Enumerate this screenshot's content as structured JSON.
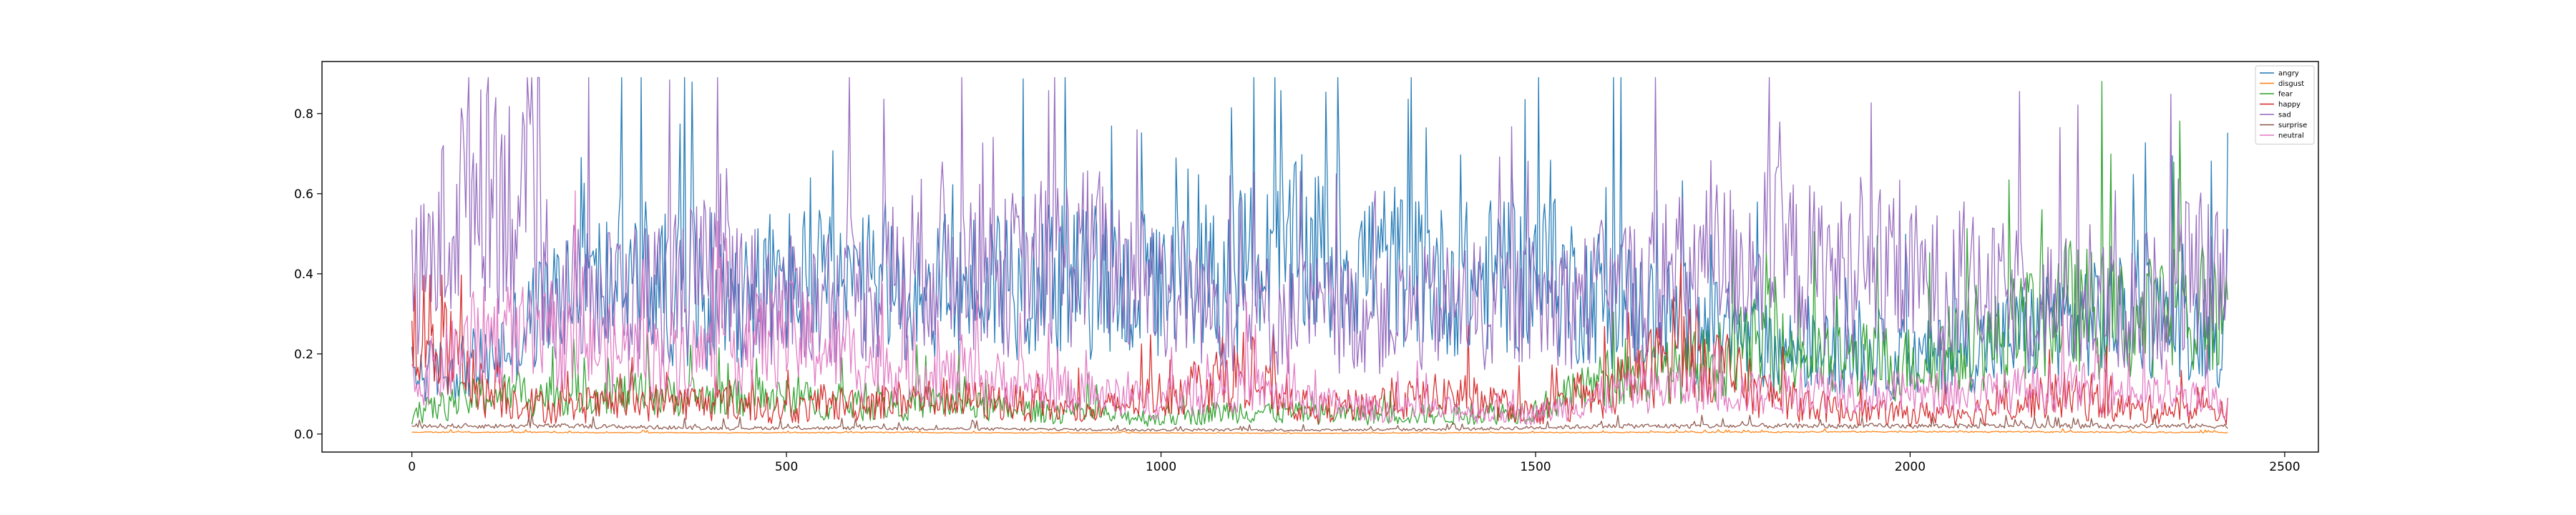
{
  "chart_data": {
    "type": "line",
    "title": "",
    "xlabel": "",
    "ylabel": "",
    "xlim": [
      -120,
      2545
    ],
    "ylim": [
      -0.045,
      0.93
    ],
    "x_ticks": [
      0,
      500,
      1000,
      1500,
      2000,
      2500
    ],
    "x_tick_labels": [
      "0",
      "500",
      "1000",
      "1500",
      "2000",
      "2500"
    ],
    "y_ticks": [
      0.0,
      0.2,
      0.4,
      0.6,
      0.8
    ],
    "y_tick_labels": [
      "0.0",
      "0.2",
      "0.4",
      "0.6",
      "0.8"
    ],
    "grid": false,
    "legend_position": "top-right",
    "n_points": 2425,
    "series_order": [
      "angry",
      "disgust",
      "fear",
      "happy",
      "sad",
      "surprise",
      "neutral"
    ],
    "series": [
      {
        "name": "angry",
        "color": "#1f77b4",
        "x": [
          0,
          100,
          200,
          300,
          400,
          500,
          600,
          700,
          800,
          900,
          1000,
          1100,
          1200,
          1300,
          1400,
          1500,
          1600,
          1700,
          1800,
          1900,
          2000,
          2100,
          2200,
          2300,
          2400
        ],
        "values": [
          0.15,
          0.18,
          0.35,
          0.4,
          0.33,
          0.38,
          0.36,
          0.35,
          0.4,
          0.38,
          0.35,
          0.4,
          0.45,
          0.42,
          0.38,
          0.4,
          0.33,
          0.28,
          0.22,
          0.2,
          0.18,
          0.22,
          0.28,
          0.3,
          0.25
        ]
      },
      {
        "name": "disgust",
        "color": "#ff7f0e",
        "x": [
          0,
          200,
          400,
          600,
          800,
          1000,
          1200,
          1400,
          1600,
          1800,
          2000,
          2200,
          2400
        ],
        "values": [
          0.005,
          0.004,
          0.003,
          0.004,
          0.003,
          0.003,
          0.002,
          0.003,
          0.004,
          0.005,
          0.006,
          0.005,
          0.004
        ]
      },
      {
        "name": "fear",
        "color": "#2ca02c",
        "x": [
          0,
          100,
          200,
          300,
          400,
          500,
          600,
          700,
          800,
          900,
          1000,
          1100,
          1200,
          1300,
          1400,
          1500,
          1600,
          1700,
          1800,
          1900,
          2000,
          2100,
          2200,
          2300,
          2400
        ],
        "values": [
          0.05,
          0.1,
          0.1,
          0.1,
          0.09,
          0.09,
          0.07,
          0.08,
          0.06,
          0.05,
          0.04,
          0.06,
          0.05,
          0.05,
          0.05,
          0.06,
          0.14,
          0.16,
          0.22,
          0.18,
          0.18,
          0.22,
          0.32,
          0.28,
          0.3
        ]
      },
      {
        "name": "happy",
        "color": "#d62728",
        "x": [
          0,
          100,
          200,
          300,
          400,
          500,
          600,
          700,
          800,
          900,
          1000,
          1100,
          1200,
          1300,
          1400,
          1500,
          1600,
          1700,
          1800,
          1900,
          2000,
          2100,
          2200,
          2300,
          2400
        ],
        "values": [
          0.3,
          0.1,
          0.06,
          0.08,
          0.08,
          0.06,
          0.08,
          0.09,
          0.08,
          0.05,
          0.1,
          0.15,
          0.06,
          0.08,
          0.1,
          0.05,
          0.1,
          0.22,
          0.1,
          0.06,
          0.05,
          0.06,
          0.1,
          0.06,
          0.06
        ]
      },
      {
        "name": "sad",
        "color": "#9467bd",
        "x": [
          0,
          100,
          200,
          300,
          400,
          500,
          600,
          700,
          800,
          900,
          1000,
          1100,
          1200,
          1300,
          1400,
          1500,
          1600,
          1700,
          1800,
          1900,
          2000,
          2100,
          2200,
          2300,
          2400
        ],
        "values": [
          0.35,
          0.7,
          0.35,
          0.35,
          0.4,
          0.32,
          0.35,
          0.45,
          0.4,
          0.45,
          0.38,
          0.3,
          0.3,
          0.3,
          0.32,
          0.32,
          0.35,
          0.4,
          0.45,
          0.4,
          0.38,
          0.35,
          0.33,
          0.32,
          0.4
        ]
      },
      {
        "name": "surprise",
        "color": "#8c564b",
        "x": [
          0,
          200,
          400,
          600,
          800,
          1000,
          1200,
          1400,
          1600,
          1800,
          2000,
          2200,
          2400
        ],
        "values": [
          0.02,
          0.02,
          0.015,
          0.015,
          0.012,
          0.01,
          0.01,
          0.012,
          0.02,
          0.02,
          0.02,
          0.02,
          0.02
        ]
      },
      {
        "name": "neutral",
        "color": "#e377c2",
        "x": [
          0,
          100,
          200,
          300,
          400,
          500,
          600,
          700,
          800,
          900,
          1000,
          1100,
          1200,
          1300,
          1400,
          1500,
          1600,
          1700,
          1800,
          1900,
          2000,
          2100,
          2200,
          2300,
          2400
        ],
        "values": [
          0.12,
          0.25,
          0.22,
          0.2,
          0.2,
          0.25,
          0.18,
          0.15,
          0.13,
          0.1,
          0.08,
          0.12,
          0.08,
          0.06,
          0.06,
          0.05,
          0.1,
          0.12,
          0.1,
          0.12,
          0.1,
          0.1,
          0.12,
          0.1,
          0.08
        ]
      }
    ]
  }
}
